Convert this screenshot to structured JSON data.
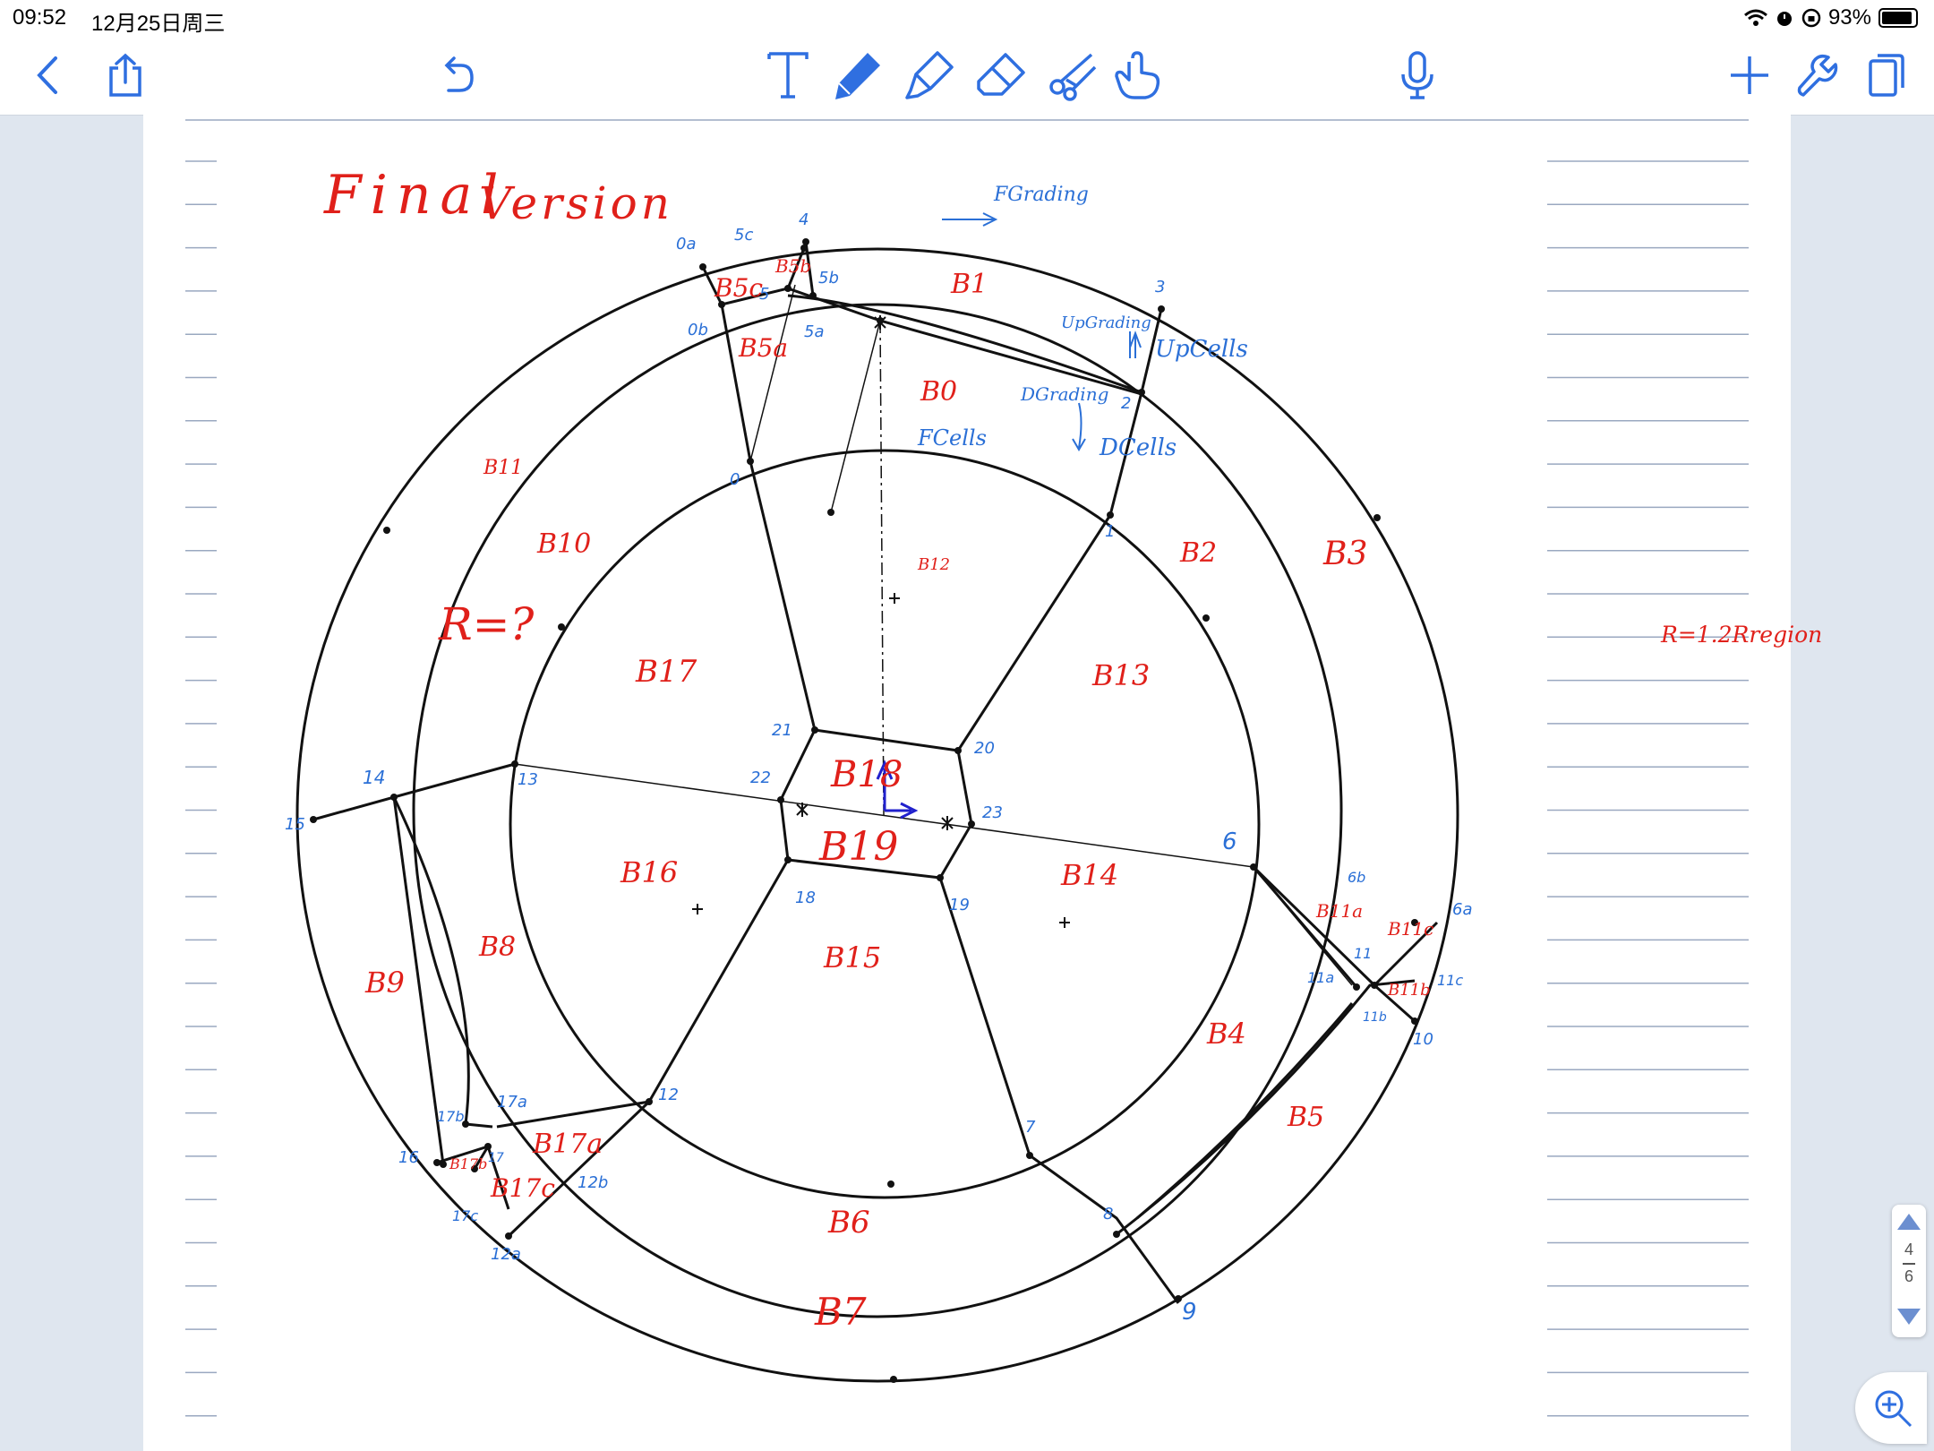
{
  "status": {
    "time": "09:52",
    "date": "12月25日周三",
    "battery": "93%"
  },
  "colors": {
    "accent": "#2f6fe0",
    "ink_red": "#e0201a",
    "ink_blue": "#2a6fd6",
    "ink_black": "#111111"
  },
  "toolbar": {
    "left": [
      "back-icon",
      "share-icon",
      "undo-icon"
    ],
    "tools": [
      "text-tool-icon",
      "pen-icon",
      "highlighter-icon",
      "eraser-icon",
      "lasso-icon",
      "hand-pointer-icon"
    ],
    "right": [
      "microphone-icon",
      "add-icon",
      "wrench-icon",
      "pages-icon"
    ]
  },
  "pager": {
    "current": "4",
    "total": "6"
  },
  "note": {
    "title_word1": "Final",
    "title_word2": "Version",
    "r_question": "R=?",
    "r_formula": "R=1.2Rregion",
    "flow_labels": [
      "FGrading",
      "UpGrading",
      "UpCells",
      "DGrading",
      "DCells",
      "FCells"
    ],
    "blocks": [
      "B0",
      "B1",
      "B2",
      "B3",
      "B4",
      "B5",
      "B5a",
      "B5b",
      "B5c",
      "B6",
      "B7",
      "B8",
      "B9",
      "B10",
      "B11",
      "B11a",
      "B11b",
      "B11c",
      "B12",
      "B13",
      "B14",
      "B15",
      "B16",
      "B17",
      "B17a",
      "B17b",
      "B17c",
      "B18",
      "B19"
    ],
    "vertices": [
      "0",
      "0a",
      "0b",
      "1",
      "2",
      "3",
      "4",
      "5",
      "5a",
      "5b",
      "5c",
      "6",
      "6a",
      "6b",
      "7",
      "8",
      "9",
      "10",
      "11",
      "11a",
      "11b",
      "11c",
      "12",
      "12a",
      "12b",
      "13",
      "14",
      "15",
      "16",
      "17",
      "17a",
      "17b",
      "17c",
      "18",
      "19",
      "20",
      "21",
      "22",
      "23"
    ]
  }
}
